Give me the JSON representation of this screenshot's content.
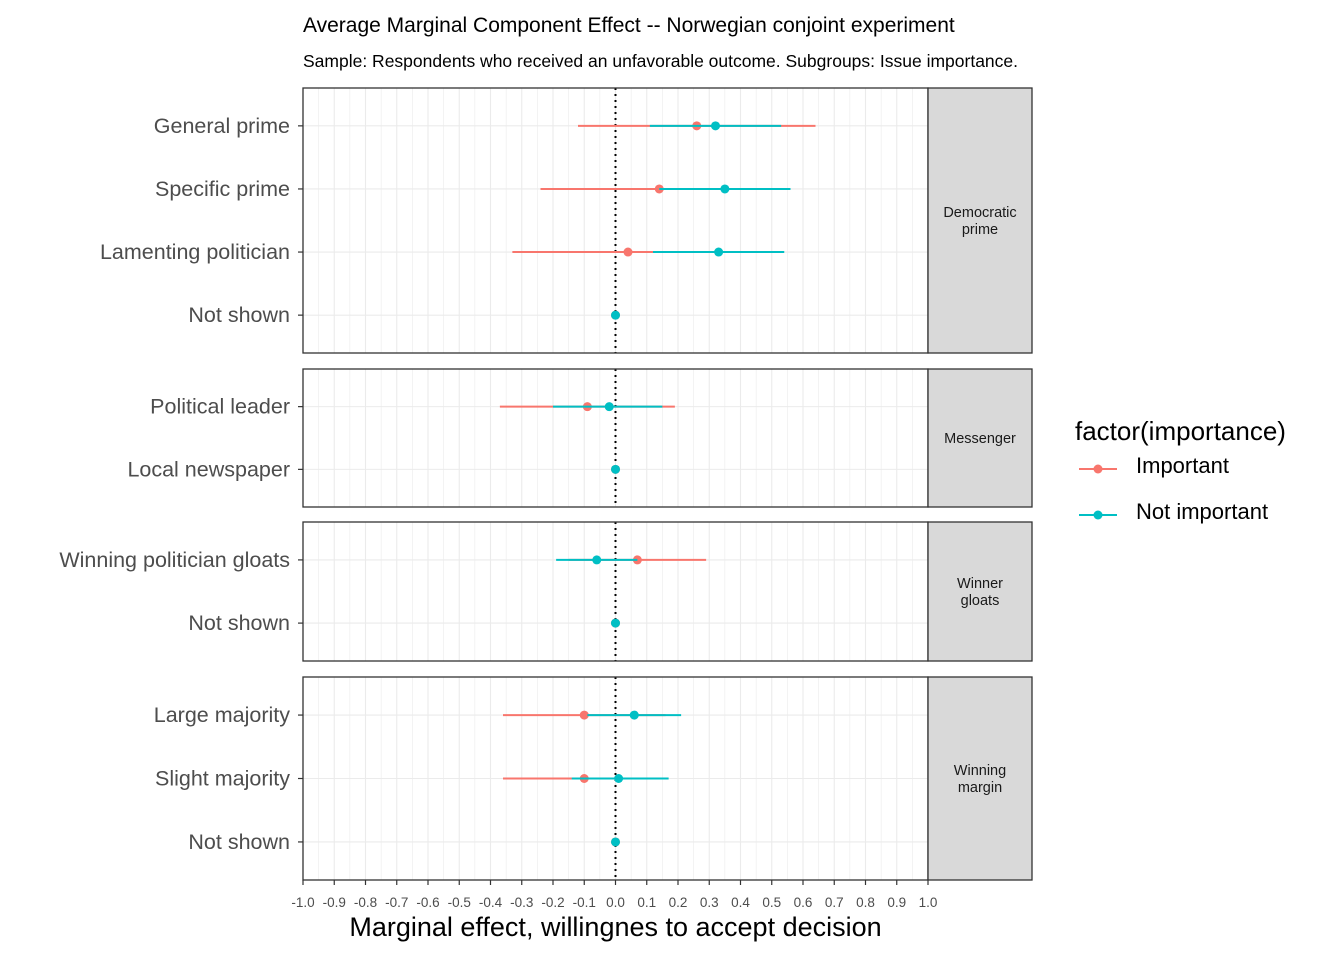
{
  "title": "Average Marginal Component Effect -- Norwegian conjoint experiment",
  "subtitle": "Sample: Respondents who received an unfavorable outcome. Subgroups: Issue importance.",
  "legend": {
    "title": "factor(importance)",
    "items": [
      {
        "label": "Important",
        "color": "#F8766D"
      },
      {
        "label": "Not important",
        "color": "#00BFC4"
      }
    ]
  },
  "chart_data": {
    "type": "scatter",
    "subtype": "point-range (coefficient plot), faceted by row",
    "title": "Average Marginal Component Effect -- Norwegian conjoint experiment",
    "subtitle": "Sample: Respondents who received an unfavorable outcome. Subgroups: Issue importance.",
    "xlabel": "Marginal effect, willingnes to accept decision",
    "ylabel": "",
    "xlim": [
      -1.0,
      1.0
    ],
    "xticks": [
      "-1.0",
      "-0.9",
      "-0.8",
      "-0.7",
      "-0.6",
      "-0.5",
      "-0.4",
      "-0.3",
      "-0.2",
      "-0.1",
      "0.0",
      "0.1",
      "0.2",
      "0.3",
      "0.4",
      "0.5",
      "0.6",
      "0.7",
      "0.8",
      "0.9",
      "1.0"
    ],
    "reference_line": 0,
    "grid": true,
    "legend_position": "right",
    "series_names": [
      "Important",
      "Not important"
    ],
    "facets": [
      {
        "strip": [
          "Democratic",
          "prime"
        ],
        "rows": [
          {
            "label": "General prime",
            "important": {
              "est": 0.26,
              "lo": -0.12,
              "hi": 0.64
            },
            "not_important": {
              "est": 0.32,
              "lo": 0.11,
              "hi": 0.53
            }
          },
          {
            "label": "Specific prime",
            "important": {
              "est": 0.14,
              "lo": -0.24,
              "hi": 0.52
            },
            "not_important": {
              "est": 0.35,
              "lo": 0.14,
              "hi": 0.56
            }
          },
          {
            "label": "Lamenting politician",
            "important": {
              "est": 0.04,
              "lo": -0.33,
              "hi": 0.41
            },
            "not_important": {
              "est": 0.33,
              "lo": 0.12,
              "hi": 0.54
            }
          },
          {
            "label": "Not shown",
            "important": {
              "est": 0.0,
              "lo": 0.0,
              "hi": 0.0
            },
            "not_important": {
              "est": 0.0,
              "lo": 0.0,
              "hi": 0.0
            }
          }
        ]
      },
      {
        "strip": [
          "Messenger"
        ],
        "rows": [
          {
            "label": "Political leader",
            "important": {
              "est": -0.09,
              "lo": -0.37,
              "hi": 0.19
            },
            "not_important": {
              "est": -0.02,
              "lo": -0.2,
              "hi": 0.15
            }
          },
          {
            "label": "Local newspaper",
            "important": {
              "est": 0.0,
              "lo": 0.0,
              "hi": 0.0
            },
            "not_important": {
              "est": 0.0,
              "lo": 0.0,
              "hi": 0.0
            }
          }
        ]
      },
      {
        "strip": [
          "Winner",
          "gloats"
        ],
        "rows": [
          {
            "label": "Winning politician gloats",
            "important": {
              "est": 0.07,
              "lo": -0.15,
              "hi": 0.29
            },
            "not_important": {
              "est": -0.06,
              "lo": -0.19,
              "hi": 0.07
            }
          },
          {
            "label": "Not shown",
            "important": {
              "est": 0.0,
              "lo": 0.0,
              "hi": 0.0
            },
            "not_important": {
              "est": 0.0,
              "lo": 0.0,
              "hi": 0.0
            }
          }
        ]
      },
      {
        "strip": [
          "Winning",
          "margin"
        ],
        "rows": [
          {
            "label": "Large majority",
            "important": {
              "est": -0.1,
              "lo": -0.36,
              "hi": 0.16
            },
            "not_important": {
              "est": 0.06,
              "lo": -0.09,
              "hi": 0.21
            }
          },
          {
            "label": "Slight majority",
            "important": {
              "est": -0.1,
              "lo": -0.36,
              "hi": 0.16
            },
            "not_important": {
              "est": 0.01,
              "lo": -0.14,
              "hi": 0.17
            }
          },
          {
            "label": "Not shown",
            "important": {
              "est": 0.0,
              "lo": 0.0,
              "hi": 0.0
            },
            "not_important": {
              "est": 0.0,
              "lo": 0.0,
              "hi": 0.0
            }
          }
        ]
      }
    ]
  }
}
